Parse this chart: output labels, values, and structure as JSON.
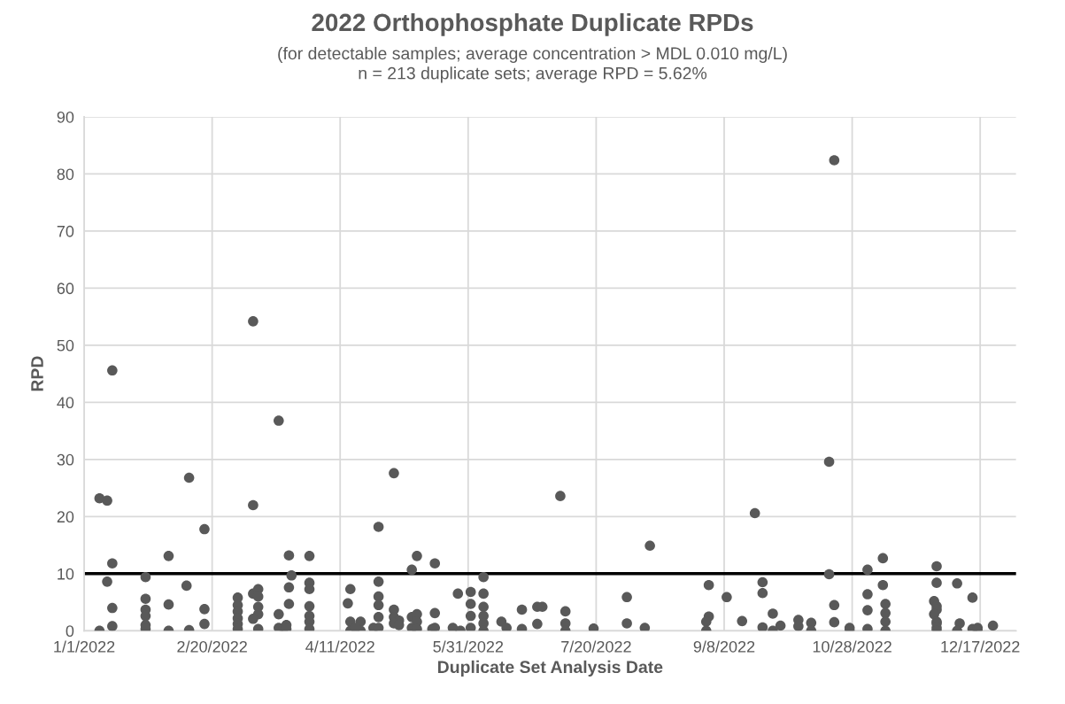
{
  "chart_data": {
    "type": "scatter",
    "title": "2022 Orthophosphate Duplicate RPDs",
    "subtitle": "(for detectable samples; average concentration > MDL 0.010 mg/L)\nn = 213 duplicate sets; average RPD = 5.62%",
    "xlabel": "Duplicate Set Analysis Date",
    "ylabel": "RPD",
    "series": [
      {
        "color": "#595959",
        "x": [
          "2022-01-12",
          "2022-01-07",
          "2022-01-10",
          "2022-02-11",
          "2022-03-18",
          "2022-03-08",
          "2022-02-17",
          "2022-01-12",
          "2022-02-03",
          "2022-03-22",
          "2022-03-30",
          "2022-01-10",
          "2022-01-25",
          "2022-03-23",
          "2022-02-10",
          "2022-01-12",
          "2022-01-12",
          "2022-01-07",
          "2022-01-25",
          "2022-01-25",
          "2022-01-25",
          "2022-01-25",
          "2022-01-25",
          "2022-02-03",
          "2022-02-03",
          "2022-02-11",
          "2022-02-17",
          "2022-02-17",
          "2022-03-02",
          "2022-03-02",
          "2022-03-02",
          "2022-03-02",
          "2022-03-02",
          "2022-03-02",
          "2022-03-08",
          "2022-03-10",
          "2022-03-10",
          "2022-03-10",
          "2022-03-10",
          "2022-03-08",
          "2022-03-10",
          "2022-03-18",
          "2022-03-18",
          "2022-03-20",
          "2022-03-21",
          "2022-03-21",
          "2022-03-22",
          "2022-03-22",
          "2022-03-30",
          "2022-03-30",
          "2022-03-30",
          "2022-03-30",
          "2022-03-30",
          "2022-03-30",
          "2022-05-02",
          "2022-04-26",
          "2022-07-06",
          "2022-05-11",
          "2022-05-09",
          "2022-05-18",
          "2022-04-26",
          "2022-04-15",
          "2022-04-14",
          "2022-04-15",
          "2022-04-15",
          "2022-04-19",
          "2022-04-19",
          "2022-04-17",
          "2022-04-26",
          "2022-04-26",
          "2022-04-26",
          "2022-04-24",
          "2022-04-26",
          "2022-05-02",
          "2022-05-02",
          "2022-05-04",
          "2022-05-02",
          "2022-05-04",
          "2022-05-09",
          "2022-05-09",
          "2022-05-11",
          "2022-05-11",
          "2022-05-11",
          "2022-05-18",
          "2022-05-17",
          "2022-05-18",
          "2022-05-25",
          "2022-05-28",
          "2022-05-27",
          "2022-06-01",
          "2022-06-01",
          "2022-06-01",
          "2022-06-01",
          "2022-06-06",
          "2022-06-06",
          "2022-06-06",
          "2022-06-06",
          "2022-06-06",
          "2022-06-06",
          "2022-06-13",
          "2022-06-15",
          "2022-06-21",
          "2022-06-21",
          "2022-06-27",
          "2022-06-29",
          "2022-06-27",
          "2022-07-08",
          "2022-07-08",
          "2022-07-08",
          "2022-07-19",
          "2022-08-01",
          "2022-08-01",
          "2022-08-10",
          "2022-08-08",
          "2022-09-02",
          "2022-09-02",
          "2022-09-01",
          "2022-09-01",
          "2022-09-09",
          "2022-09-20",
          "2022-09-15",
          "2022-09-23",
          "2022-09-23",
          "2022-09-27",
          "2022-09-23",
          "2022-09-27",
          "2022-09-30",
          "2022-10-07",
          "2022-10-07",
          "2022-10-12",
          "2022-10-12",
          "2022-10-21",
          "2022-03-08",
          "2022-10-19",
          "2022-10-19",
          "2022-10-21",
          "2022-10-21",
          "2022-10-27",
          "2022-10-27",
          "2022-11-03",
          "2022-11-03",
          "2022-11-03",
          "2022-11-03",
          "2022-11-09",
          "2022-11-09",
          "2022-11-10",
          "2022-11-10",
          "2022-11-10",
          "2022-11-10",
          "2022-11-30",
          "2022-11-30",
          "2022-11-29",
          "2022-11-30",
          "2022-11-30",
          "2022-11-29",
          "2022-11-30",
          "2022-11-30",
          "2022-11-30",
          "2022-11-30",
          "2022-12-08",
          "2022-12-14",
          "2022-12-09",
          "2022-12-08",
          "2022-12-14",
          "2022-12-16",
          "2022-12-16",
          "2022-12-22"
        ],
        "values": [
          45.6,
          23.2,
          22.8,
          26.8,
          36.8,
          22.0,
          17.8,
          11.8,
          13.1,
          13.2,
          13.1,
          8.6,
          9.4,
          9.7,
          7.9,
          4.0,
          0.8,
          0,
          5.6,
          3.7,
          2.6,
          1.0,
          0.3,
          4.6,
          0,
          0.1,
          3.8,
          1.2,
          5.8,
          4.5,
          3.4,
          2.2,
          1.2,
          0.3,
          6.5,
          7.3,
          6.0,
          4.2,
          2.9,
          2.1,
          0.3,
          2.9,
          0.5,
          0.5,
          1.0,
          0.3,
          7.6,
          4.7,
          8.4,
          7.3,
          4.3,
          2.6,
          1.6,
          0.3,
          27.6,
          18.2,
          23.6,
          13.1,
          10.7,
          11.8,
          8.6,
          7.3,
          4.8,
          1.6,
          0,
          1.6,
          0,
          0.5,
          6.0,
          4.5,
          2.4,
          0.5,
          0.5,
          3.7,
          2.4,
          1.8,
          1.3,
          1.0,
          2.4,
          0.5,
          2.9,
          1.6,
          0.3,
          3.1,
          0.3,
          0.5,
          0.5,
          0,
          6.5,
          6.8,
          4.7,
          2.6,
          0.5,
          9.4,
          6.5,
          4.2,
          2.6,
          1.3,
          0,
          1.6,
          0.5,
          3.7,
          0.3,
          4.2,
          4.2,
          1.2,
          3.4,
          1.3,
          0,
          0.4,
          5.9,
          1.3,
          14.9,
          0.5,
          8.0,
          2.5,
          1.6,
          0,
          5.9,
          20.6,
          1.7,
          8.5,
          6.6,
          3.0,
          0.6,
          0,
          0.9,
          1.9,
          0.8,
          1.4,
          0,
          82.4,
          54.2,
          29.6,
          9.9,
          4.5,
          1.5,
          0.5,
          0,
          10.7,
          6.4,
          3.6,
          0.3,
          12.7,
          8.0,
          4.7,
          3.1,
          1.6,
          0,
          11.3,
          8.4,
          5.2,
          4.3,
          3.7,
          2.9,
          1.6,
          1.3,
          0.5,
          0,
          8.3,
          5.8,
          1.3,
          0,
          0.3,
          0.5,
          0,
          0.9
        ]
      }
    ],
    "xlim": [
      "2022-01-01",
      "2022-12-31"
    ],
    "xticks": [
      {
        "value": "2022-01-01",
        "label": "1/1/2022"
      },
      {
        "value": "2022-02-20",
        "label": "2/20/2022"
      },
      {
        "value": "2022-04-11",
        "label": "4/11/2022"
      },
      {
        "value": "2022-05-31",
        "label": "5/31/2022"
      },
      {
        "value": "2022-07-20",
        "label": "7/20/2022"
      },
      {
        "value": "2022-09-08",
        "label": "9/8/2022"
      },
      {
        "value": "2022-10-28",
        "label": "10/28/2022"
      },
      {
        "value": "2022-12-17",
        "label": "12/17/2022"
      }
    ],
    "ylim": [
      0,
      90
    ],
    "yticks": [
      0,
      10,
      20,
      30,
      40,
      50,
      60,
      70,
      80,
      90
    ],
    "ref_lines": [
      {
        "axis": "y",
        "value": 10,
        "color": "#000000",
        "line_style": "solid"
      }
    ],
    "grid": true,
    "marker": "circle",
    "legend": false
  }
}
